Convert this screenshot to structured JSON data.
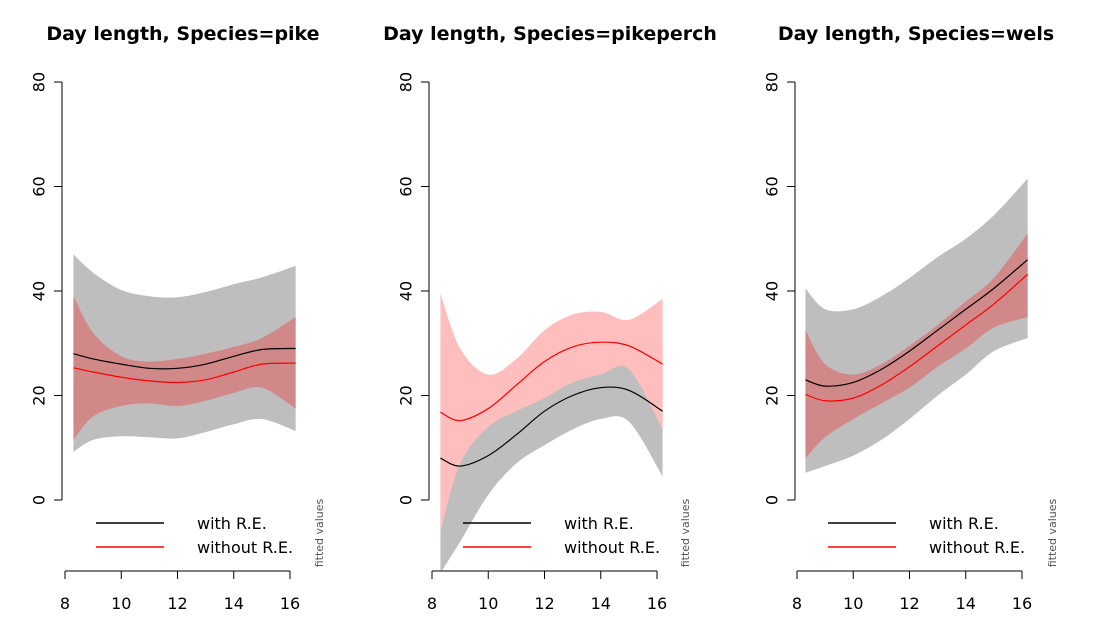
{
  "chart_data": [
    {
      "type": "line",
      "title": "Day length, Species=pike",
      "side_label": "fitted values",
      "xlim": [
        8,
        16
      ],
      "ylim": [
        -14,
        80
      ],
      "x_ticks": [
        "8",
        "10",
        "12",
        "14",
        "16"
      ],
      "y_ticks": [
        "0",
        "20",
        "40",
        "60",
        "80"
      ],
      "legend": {
        "placement": "bottom",
        "entries": [
          "with R.E.",
          "without R.E."
        ]
      },
      "series": [
        {
          "name": "with R.E.",
          "color": "#000000",
          "band_color": "#bebebe",
          "x": [
            8.3,
            9,
            10,
            11,
            12,
            13,
            14,
            15,
            16.2
          ],
          "y": [
            28.0,
            27.0,
            26.0,
            25.2,
            25.2,
            26.0,
            27.5,
            28.8,
            29.0
          ],
          "lower": [
            9.2,
            11.5,
            12.2,
            12.0,
            11.8,
            13.0,
            14.5,
            15.5,
            13.2
          ],
          "upper": [
            47.0,
            43.5,
            40.2,
            39.0,
            38.8,
            39.8,
            41.3,
            42.6,
            44.8
          ]
        },
        {
          "name": "without R.E.",
          "color": "#ff0000",
          "band_color": "#d18888",
          "x": [
            8.3,
            9,
            10,
            11,
            12,
            13,
            14,
            15,
            16.2
          ],
          "y": [
            25.3,
            24.5,
            23.5,
            22.8,
            22.5,
            23.0,
            24.5,
            26.0,
            26.2
          ],
          "lower": [
            11.5,
            16.0,
            18.0,
            18.5,
            18.0,
            19.0,
            20.5,
            21.5,
            17.5
          ],
          "upper": [
            39.0,
            32.0,
            27.5,
            26.5,
            27.0,
            28.0,
            29.3,
            31.0,
            35.0
          ]
        }
      ]
    },
    {
      "type": "line",
      "title": "Day length, Species=pikeperch",
      "side_label": "fitted values",
      "xlim": [
        8,
        16
      ],
      "ylim": [
        -14,
        80
      ],
      "x_ticks": [
        "8",
        "10",
        "12",
        "14",
        "16"
      ],
      "y_ticks": [
        "0",
        "20",
        "40",
        "60",
        "80"
      ],
      "legend": {
        "placement": "bottom",
        "entries": [
          "with R.E.",
          "without R.E."
        ]
      },
      "series": [
        {
          "name": "with R.E.",
          "color": "#000000",
          "band_color": "#bebebe",
          "x": [
            8.3,
            9,
            10,
            11,
            12,
            13,
            14,
            15,
            16.2
          ],
          "y": [
            8.0,
            6.5,
            8.5,
            12.5,
            17.0,
            20.0,
            21.5,
            21.0,
            17.0
          ],
          "lower": [
            -14.0,
            -8.0,
            1.0,
            7.0,
            10.5,
            13.5,
            15.5,
            15.0,
            4.5
          ],
          "upper": [
            31.0,
            22.0,
            17.0,
            17.5,
            22.5,
            26.0,
            28.0,
            28.0,
            29.5
          ]
        },
        {
          "name": "without R.E.",
          "color": "#ff0000",
          "band_color": "#ffbebe",
          "x": [
            8.3,
            9,
            10,
            11,
            12,
            13,
            14,
            15,
            16.2
          ],
          "y": [
            16.8,
            15.2,
            17.5,
            22.0,
            26.5,
            29.3,
            30.2,
            29.5,
            26.0
          ],
          "lower": [
            -6.0,
            7.0,
            14.0,
            17.0,
            19.5,
            22.5,
            24.0,
            25.0,
            13.5
          ],
          "upper": [
            39.5,
            29.0,
            24.0,
            27.0,
            32.5,
            35.5,
            36.0,
            34.5,
            38.5
          ]
        }
      ]
    },
    {
      "type": "line",
      "title": "Day length, Species=wels",
      "side_label": "fitted values",
      "xlim": [
        8,
        16
      ],
      "ylim": [
        -14,
        80
      ],
      "x_ticks": [
        "8",
        "10",
        "12",
        "14",
        "16"
      ],
      "y_ticks": [
        "0",
        "20",
        "40",
        "60",
        "80"
      ],
      "legend": {
        "placement": "bottom",
        "entries": [
          "with R.E.",
          "without R.E."
        ]
      },
      "series": [
        {
          "name": "with R.E.",
          "color": "#000000",
          "band_color": "#bebebe",
          "x": [
            8.3,
            9,
            10,
            11,
            12,
            13,
            14,
            15,
            16.2
          ],
          "y": [
            23.0,
            21.8,
            22.5,
            25.0,
            28.5,
            32.5,
            36.5,
            40.5,
            46.0
          ],
          "lower": [
            5.2,
            6.5,
            8.5,
            11.5,
            15.5,
            20.0,
            24.0,
            28.5,
            31.0
          ],
          "upper": [
            40.5,
            36.5,
            36.5,
            39.0,
            42.5,
            46.5,
            50.0,
            54.5,
            61.5
          ]
        },
        {
          "name": "without R.E.",
          "color": "#ff0000",
          "band_color": "#d18888",
          "x": [
            8.3,
            9,
            10,
            11,
            12,
            13,
            14,
            15,
            16.2
          ],
          "y": [
            20.2,
            19.0,
            19.5,
            22.0,
            25.5,
            29.5,
            33.5,
            37.5,
            43.2
          ],
          "lower": [
            8.0,
            12.0,
            15.5,
            18.5,
            21.5,
            25.5,
            29.0,
            33.0,
            35.0
          ],
          "upper": [
            32.5,
            26.0,
            24.0,
            26.0,
            29.5,
            33.5,
            38.0,
            42.5,
            51.0
          ]
        }
      ]
    }
  ]
}
